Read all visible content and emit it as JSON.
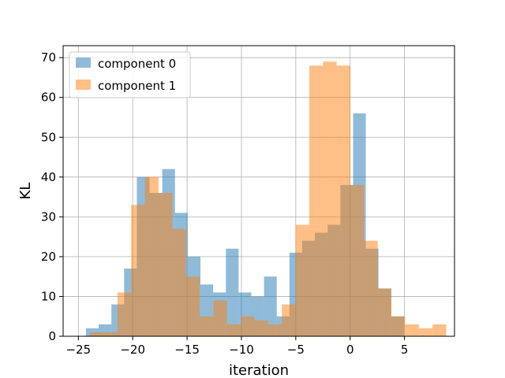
{
  "chart_data": {
    "type": "bar",
    "subtype": "overlaid-histogram",
    "title": "",
    "xlabel": "iteration",
    "ylabel": "KL",
    "xlim": [
      -26.4,
      9.6
    ],
    "ylim": [
      0,
      73
    ],
    "xticks": [
      -25,
      -20,
      -15,
      -10,
      -5,
      0,
      5
    ],
    "xtick_labels": [
      "−25",
      "−20",
      "−15",
      "−10",
      "−5",
      "0",
      "5"
    ],
    "yticks": [
      0,
      10,
      20,
      30,
      40,
      50,
      60,
      70
    ],
    "ytick_labels": [
      "0",
      "10",
      "20",
      "30",
      "40",
      "50",
      "60",
      "70"
    ],
    "grid": true,
    "legend_position": "top-left",
    "series": [
      {
        "name": "component 0",
        "color": "#1f77b4",
        "alpha": 0.5,
        "bin_edges": [
          -24.3,
          -23.13,
          -21.96,
          -20.79,
          -19.62,
          -18.45,
          -17.28,
          -16.11,
          -14.94,
          -13.77,
          -12.6,
          -11.43,
          -10.26,
          -9.09,
          -7.92,
          -6.75,
          -5.58,
          -4.41,
          -3.24,
          -2.07,
          -0.9,
          0.27,
          1.44,
          2.61,
          3.78,
          4.95
        ],
        "counts": [
          2,
          3,
          8,
          17,
          40,
          36,
          42,
          31,
          20,
          13,
          11,
          22,
          11,
          10,
          15,
          5,
          21,
          24,
          26,
          28,
          38,
          56,
          22,
          12,
          5
        ]
      },
      {
        "name": "component 1",
        "color": "#ff7f0e",
        "alpha": 0.5,
        "bin_edges": [
          -23.92,
          -22.66,
          -21.4,
          -20.14,
          -18.88,
          -17.62,
          -16.36,
          -15.1,
          -13.84,
          -12.58,
          -11.32,
          -10.06,
          -8.8,
          -7.54,
          -6.28,
          -5.02,
          -3.76,
          -2.5,
          -1.24,
          0.02,
          1.28,
          2.54,
          3.8,
          5.06,
          6.32,
          7.58,
          8.84
        ],
        "counts": [
          1,
          1,
          11,
          33,
          40,
          36,
          27,
          15,
          5,
          9,
          3,
          5,
          4,
          3,
          8,
          28,
          68,
          69,
          68,
          38,
          24,
          12,
          5,
          3,
          2,
          3
        ]
      }
    ]
  }
}
